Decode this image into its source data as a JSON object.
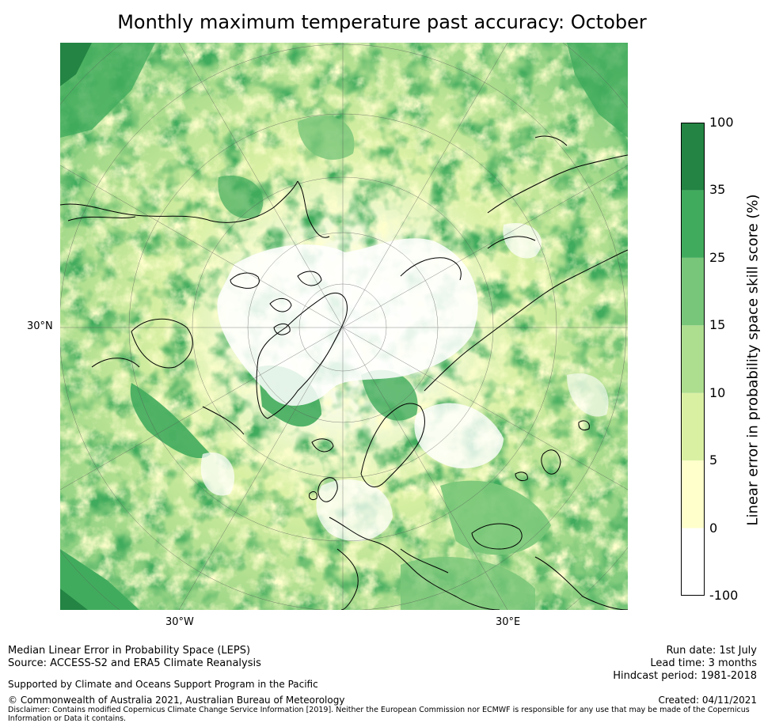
{
  "title": "Monthly maximum temperature past accuracy: October",
  "map": {
    "projection": "north-polar-stereographic",
    "lat_labels": [
      "30°N"
    ],
    "lon_labels": [
      "30°W",
      "30°E"
    ]
  },
  "colorbar": {
    "label": "Linear error in probability space skill score (%)",
    "ticks": [
      "100",
      "35",
      "25",
      "15",
      "10",
      "5",
      "0",
      "-100"
    ],
    "bins": [
      {
        "from": -100,
        "to": 0,
        "color": "#ffffff"
      },
      {
        "from": 0,
        "to": 5,
        "color": "#ffffcc"
      },
      {
        "from": 5,
        "to": 10,
        "color": "#d9f0a3"
      },
      {
        "from": 10,
        "to": 15,
        "color": "#addd8e"
      },
      {
        "from": 15,
        "to": 25,
        "color": "#78c679"
      },
      {
        "from": 25,
        "to": 35,
        "color": "#41ab5d"
      },
      {
        "from": 35,
        "to": 100,
        "color": "#238443"
      }
    ]
  },
  "footer": {
    "left_line1": "Median Linear Error in Probability Space (LEPS)",
    "left_line2": "Source: ACCESS-S2 and ERA5 Climate Reanalysis",
    "support": "Supported by Climate and Oceans Support Program in the Pacific",
    "copyright": "© Commonwealth of Australia 2021, Australian Bureau of Meteorology",
    "disclaimer": "Disclaimer: Contains modified Copernicus Climate Change Service Information [2019]. Neither the European Commission nor ECMWF is responsible for any use that may be made of the Copernicus Information or Data it contains.",
    "run_date": "Run date: 1st July",
    "lead_time": "Lead time: 3 months",
    "hindcast": "Hindcast period: 1981-2018",
    "created": "Created: 04/11/2021"
  }
}
